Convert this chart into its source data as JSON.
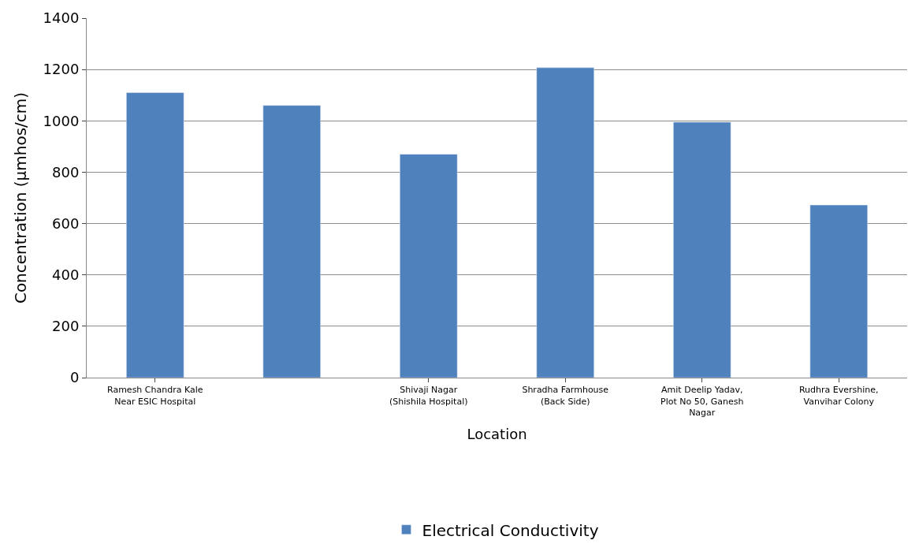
{
  "chart_data": {
    "type": "bar",
    "xlabel": "Location",
    "ylabel": "Concentration (µmhos/cm)",
    "categories": [
      "Ramesh Chandra Kale Near ESIC Hospital",
      null,
      "Shivaji Nagar (Shishila Hospital)",
      "Shradha Farmhouse (Back Side)",
      "Amit Deelip Yadav, Plot No 50, Ganesh Nagar",
      "Rudhra Evershine, Vanvihar Colony"
    ],
    "series": [
      {
        "name": "Electrical Conductivity",
        "color": "#4f81bd",
        "values": [
          1110,
          1060,
          870,
          1207,
          995,
          672
        ]
      }
    ],
    "ylim": [
      0,
      1400
    ],
    "yticks": [
      0,
      200,
      400,
      600,
      800,
      1000,
      1200,
      1400
    ],
    "grid": "y",
    "legend": "bottom"
  }
}
